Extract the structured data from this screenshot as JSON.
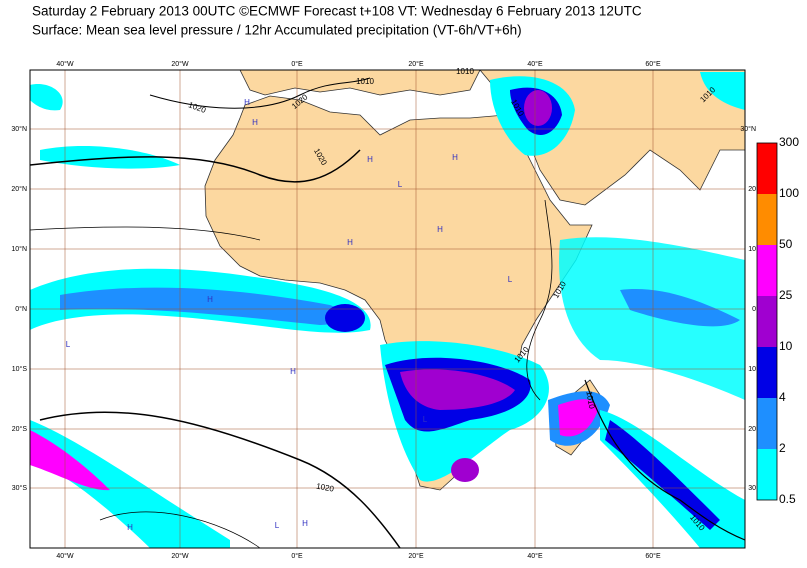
{
  "header": {
    "title_line1": "Saturday 2 February 2013 00UTC ©ECMWF Forecast t+108 VT: Wednesday 6 February 2013 12UTC",
    "title_line2": "Surface: Mean sea level pressure / 12hr Accumulated precipitation (VT-6h/VT+6h)"
  },
  "map": {
    "lon_labels_top": [
      "40°W",
      "20°W",
      "0°E",
      "20°E",
      "40°E",
      "60°E"
    ],
    "lon_labels_bottom": [
      "40°W",
      "20°W",
      "0°E",
      "20°E",
      "40°E",
      "60°E"
    ],
    "lat_labels_left": [
      "30°N",
      "20°N",
      "10°N",
      "0°N",
      "10°S",
      "20°S",
      "30°S"
    ],
    "lat_labels_right": [
      "30°N",
      "20",
      "10",
      "0",
      "10",
      "20",
      "30"
    ],
    "isobar_labels": [
      "1020",
      "1020",
      "1010",
      "1010",
      "1010",
      "1020",
      "1010",
      "1010",
      "1010",
      "1020",
      "1010",
      "1010"
    ],
    "pressure_centres": [
      "H",
      "H",
      "H",
      "H",
      "L",
      "H",
      "H",
      "H",
      "L",
      "L",
      "H",
      "H",
      "L",
      "H",
      "L"
    ]
  },
  "legend": {
    "levels": [
      0.5,
      2,
      4,
      10,
      25,
      50,
      100,
      300
    ],
    "colors": [
      "#00ffff",
      "#1e8fff",
      "#0000e6",
      "#a000d0",
      "#ff00ff",
      "#ff8c00",
      "#ff0000"
    ]
  }
}
